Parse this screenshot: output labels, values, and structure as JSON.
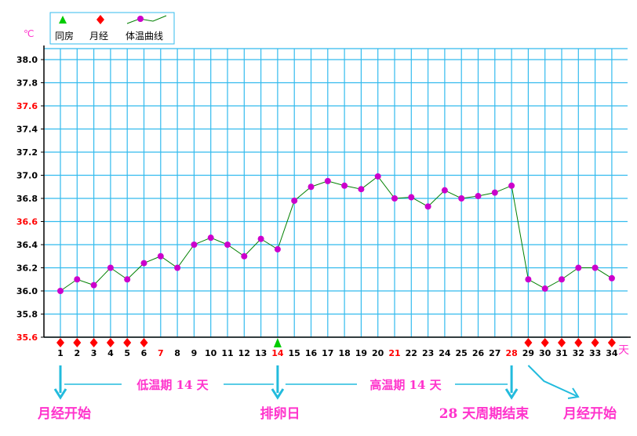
{
  "chart_data": {
    "type": "line",
    "y_unit": "℃",
    "x_unit": "天",
    "ylim": [
      35.6,
      38.0
    ],
    "xlim": [
      1,
      34
    ],
    "grid": true,
    "y_ticks": [
      {
        "value": 35.6,
        "label": "35.6",
        "red": true
      },
      {
        "value": 35.8,
        "label": "35.8",
        "red": false
      },
      {
        "value": 36.0,
        "label": "36.0",
        "red": false
      },
      {
        "value": 36.2,
        "label": "36.2",
        "red": false
      },
      {
        "value": 36.4,
        "label": "36.4",
        "red": false
      },
      {
        "value": 36.6,
        "label": "36.6",
        "red": true
      },
      {
        "value": 36.8,
        "label": "36.8",
        "red": false
      },
      {
        "value": 37.0,
        "label": "37.0",
        "red": false
      },
      {
        "value": 37.2,
        "label": "37.2",
        "red": false
      },
      {
        "value": 37.4,
        "label": "37.4",
        "red": false
      },
      {
        "value": 37.6,
        "label": "37.6",
        "red": true
      },
      {
        "value": 37.8,
        "label": "37.8",
        "red": false
      },
      {
        "value": 38.0,
        "label": "38.0",
        "red": false
      }
    ],
    "x": [
      1,
      2,
      3,
      4,
      5,
      6,
      7,
      8,
      9,
      10,
      11,
      12,
      13,
      14,
      15,
      16,
      17,
      18,
      19,
      20,
      21,
      22,
      23,
      24,
      25,
      26,
      27,
      28,
      29,
      30,
      31,
      32,
      33,
      34
    ],
    "x_labels": [
      "1",
      "2",
      "3",
      "4",
      "5",
      "6",
      "7",
      "8",
      "9",
      "10",
      "11",
      "12",
      "13",
      "14",
      "15",
      "16",
      "17",
      "18",
      "19",
      "20",
      "21",
      "22",
      "23",
      "24",
      "25",
      "26",
      "27",
      "28",
      "29",
      "30",
      "31",
      "32",
      "33",
      "34"
    ],
    "x_red_labels": [
      7,
      14,
      21,
      28
    ],
    "series": [
      {
        "name": "体温曲线",
        "line_color": "#008000",
        "marker_color": "#cc00cc",
        "values": [
          36.0,
          36.1,
          36.05,
          36.2,
          36.1,
          36.24,
          36.3,
          36.2,
          36.4,
          36.46,
          36.4,
          36.3,
          36.45,
          36.36,
          36.78,
          36.9,
          36.95,
          36.91,
          36.88,
          36.99,
          36.8,
          36.81,
          36.73,
          36.87,
          36.8,
          36.82,
          36.85,
          36.91,
          36.1,
          36.02,
          36.1,
          36.2,
          36.2,
          36.11
        ]
      }
    ],
    "menstruation_days": [
      1,
      2,
      3,
      4,
      5,
      6,
      29,
      30,
      31,
      32,
      33,
      34
    ],
    "intercourse_days": [
      14
    ],
    "legend": {
      "placement": "top-left",
      "items": [
        {
          "label": "同房",
          "symbol": "triangle",
          "color": "#00cc00"
        },
        {
          "label": "月经",
          "symbol": "diamond",
          "color": "#ff0000"
        },
        {
          "label": "体温曲线",
          "symbol": "line-dot",
          "color": "#cc00cc"
        }
      ]
    },
    "annotations": {
      "low_phase": "低温期 14 天",
      "high_phase": "高温期 14 天",
      "markers": [
        {
          "day": 1,
          "label": "月经开始"
        },
        {
          "day": 14,
          "label": "排卵日"
        },
        {
          "day": 28,
          "label": "28 天周期结束"
        },
        {
          "day": 29,
          "label": "月经开始"
        }
      ]
    },
    "colors": {
      "grid": "#33bbee",
      "axis": "#000000",
      "arrow": "#22bbdd",
      "annotation_text": "#ff33cc",
      "red_label": "#ff0000"
    }
  }
}
